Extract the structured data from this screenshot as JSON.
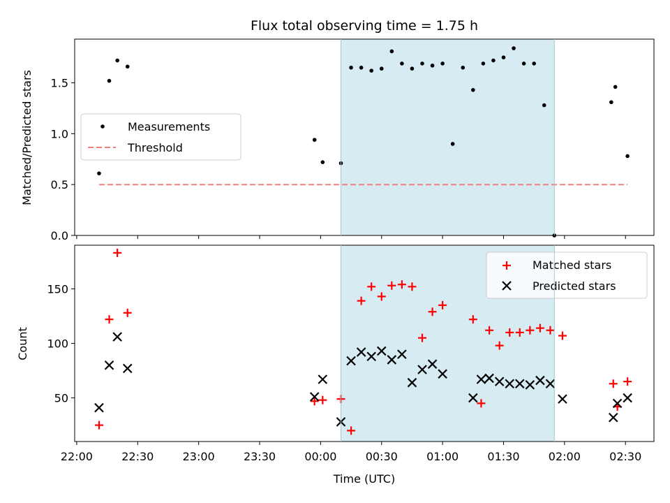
{
  "chart_data": [
    {
      "type": "scatter",
      "title": "Flux total observing time = 1.75 h",
      "xlabel": "",
      "ylabel": "Matched/Predicted stars",
      "ylim": [
        0,
        1.93
      ],
      "yticks": [
        "0.0",
        "0.5",
        "1.0",
        "1.5"
      ],
      "highlight_span_minutes": [
        130,
        235
      ],
      "legend": {
        "placement": "center-left",
        "entries": [
          "Measurements",
          "Threshold"
        ]
      },
      "threshold": {
        "name": "Threshold",
        "value": 0.5,
        "x_start_minutes": 11,
        "x_end_minutes": 271,
        "color": "#f08080"
      },
      "series": [
        {
          "name": "Measurements",
          "color": "#000000",
          "x_minutes": [
            11,
            16,
            20,
            25,
            117,
            121,
            130,
            135,
            140,
            145,
            150,
            155,
            160,
            165,
            170,
            175,
            180,
            185,
            190,
            195,
            200,
            205,
            210,
            215,
            220,
            225,
            230,
            235,
            263,
            265,
            271
          ],
          "values": [
            0.61,
            1.52,
            1.72,
            1.66,
            0.94,
            0.72,
            0.71,
            1.65,
            1.65,
            1.62,
            1.64,
            1.81,
            1.69,
            1.64,
            1.69,
            1.67,
            1.69,
            0.9,
            1.65,
            1.43,
            1.69,
            1.72,
            1.75,
            1.84,
            1.69,
            1.69,
            1.28,
            0.0,
            1.31,
            1.46,
            0.78
          ]
        }
      ]
    },
    {
      "type": "scatter",
      "title": "",
      "xlabel": "Time (UTC)",
      "ylabel": "Count",
      "ylim": [
        10,
        190
      ],
      "yticks": [
        "50",
        "100",
        "150"
      ],
      "xlim_minutes": [
        -1,
        284
      ],
      "xticks_minutes": [
        0,
        30,
        60,
        90,
        120,
        150,
        180,
        210,
        240,
        270
      ],
      "xtick_labels": [
        "22:00",
        "22:30",
        "23:00",
        "23:30",
        "00:00",
        "00:30",
        "01:00",
        "01:30",
        "02:00",
        "02:30"
      ],
      "legend": {
        "placement": "top-right",
        "entries": [
          "Matched stars",
          "Predicted stars"
        ]
      },
      "series": [
        {
          "name": "Matched stars",
          "color": "#ff0000",
          "x_minutes": [
            11,
            16,
            20,
            25,
            117,
            121,
            130,
            135,
            140,
            145,
            150,
            155,
            160,
            165,
            170,
            175,
            180,
            195,
            199,
            203,
            208,
            213,
            218,
            223,
            228,
            233,
            239,
            264,
            266,
            271
          ],
          "values": [
            25,
            122,
            183,
            128,
            47,
            48,
            49,
            20,
            139,
            152,
            143,
            153,
            154,
            152,
            105,
            129,
            135,
            122,
            45,
            112,
            98,
            110,
            110,
            112,
            114,
            112,
            107,
            63,
            42,
            65
          ]
        },
        {
          "name": "Predicted stars",
          "color": "#000000",
          "x_minutes": [
            11,
            16,
            20,
            25,
            117,
            121,
            130,
            135,
            140,
            145,
            150,
            155,
            160,
            165,
            170,
            175,
            180,
            195,
            199,
            203,
            208,
            213,
            218,
            223,
            228,
            233,
            239,
            264,
            266,
            271
          ],
          "values": [
            41,
            80,
            106,
            77,
            51,
            67,
            28,
            84,
            92,
            88,
            93,
            85,
            90,
            64,
            76,
            81,
            72,
            50,
            67,
            68,
            65,
            63,
            63,
            62,
            66,
            63,
            49,
            32,
            45,
            50
          ]
        }
      ]
    }
  ]
}
